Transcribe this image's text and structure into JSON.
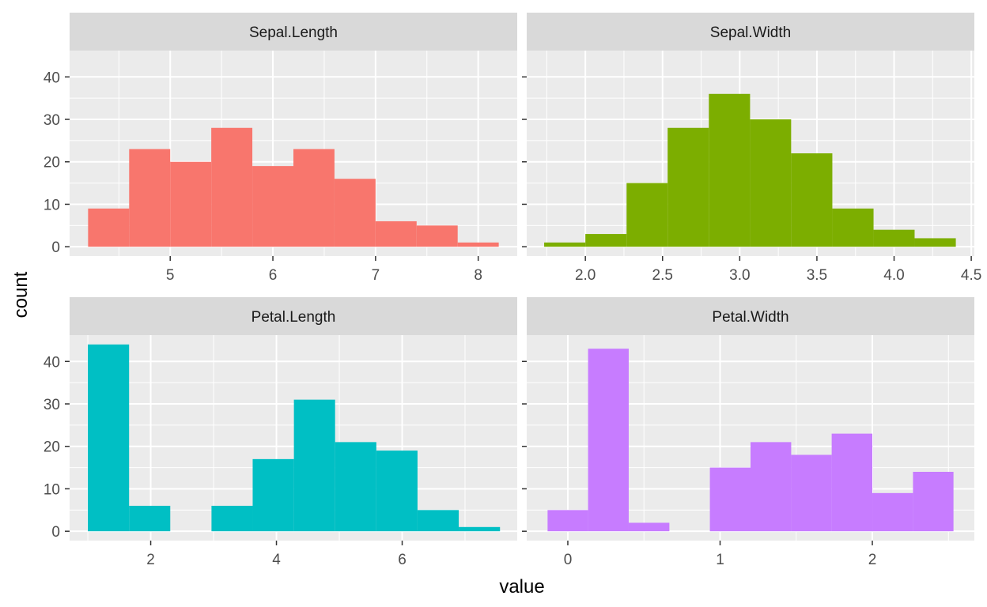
{
  "chart_data": {
    "type": "bar",
    "xlabel": "value",
    "ylabel": "count",
    "ylim": [
      -2.2,
      46.2
    ],
    "yticks": [
      0,
      10,
      20,
      30,
      40
    ],
    "grid": true,
    "legend": "none",
    "panels": [
      {
        "name": "Sepal.Length",
        "color": "#F8766D",
        "xlim": [
          4.02,
          8.38
        ],
        "xticks": [
          "5",
          "6",
          "7",
          "8"
        ],
        "xtick_values": [
          5,
          6,
          7,
          8
        ],
        "bins": [
          {
            "x0": 4.2,
            "x1": 4.6,
            "count": 9
          },
          {
            "x0": 4.6,
            "x1": 5.0,
            "count": 23
          },
          {
            "x0": 5.0,
            "x1": 5.4,
            "count": 20
          },
          {
            "x0": 5.4,
            "x1": 5.8,
            "count": 28
          },
          {
            "x0": 5.8,
            "x1": 6.2,
            "count": 19
          },
          {
            "x0": 6.2,
            "x1": 6.6,
            "count": 23
          },
          {
            "x0": 6.6,
            "x1": 7.0,
            "count": 16
          },
          {
            "x0": 7.0,
            "x1": 7.4,
            "count": 6
          },
          {
            "x0": 7.4,
            "x1": 7.8,
            "count": 5
          },
          {
            "x0": 7.8,
            "x1": 8.2,
            "count": 1
          }
        ]
      },
      {
        "name": "Sepal.Width",
        "color": "#7CAE00",
        "xlim": [
          1.62,
          4.52
        ],
        "xticks": [
          "2.0",
          "2.5",
          "3.0",
          "3.5",
          "4.0",
          "4.5"
        ],
        "xtick_values": [
          2.0,
          2.5,
          3.0,
          3.5,
          4.0,
          4.5
        ],
        "bins": [
          {
            "x0": 1.733,
            "x1": 2.0,
            "count": 1
          },
          {
            "x0": 2.0,
            "x1": 2.267,
            "count": 3
          },
          {
            "x0": 2.267,
            "x1": 2.533,
            "count": 15
          },
          {
            "x0": 2.533,
            "x1": 2.8,
            "count": 28
          },
          {
            "x0": 2.8,
            "x1": 3.067,
            "count": 36
          },
          {
            "x0": 3.067,
            "x1": 3.333,
            "count": 30
          },
          {
            "x0": 3.333,
            "x1": 3.6,
            "count": 22
          },
          {
            "x0": 3.6,
            "x1": 3.867,
            "count": 9
          },
          {
            "x0": 3.867,
            "x1": 4.133,
            "count": 4
          },
          {
            "x0": 4.133,
            "x1": 4.4,
            "count": 2
          }
        ]
      },
      {
        "name": "Petal.Length",
        "color": "#00BFC4",
        "xlim": [
          0.71,
          7.83
        ],
        "xticks": [
          "2",
          "4",
          "6"
        ],
        "xtick_values": [
          2,
          4,
          6
        ],
        "bins": [
          {
            "x0": 1.0,
            "x1": 1.656,
            "count": 44
          },
          {
            "x0": 1.656,
            "x1": 2.311,
            "count": 6
          },
          {
            "x0": 2.311,
            "x1": 2.967,
            "count": 0
          },
          {
            "x0": 2.967,
            "x1": 3.622,
            "count": 6
          },
          {
            "x0": 3.622,
            "x1": 4.278,
            "count": 17
          },
          {
            "x0": 4.278,
            "x1": 4.933,
            "count": 31
          },
          {
            "x0": 4.933,
            "x1": 5.589,
            "count": 21
          },
          {
            "x0": 5.589,
            "x1": 6.244,
            "count": 19
          },
          {
            "x0": 6.244,
            "x1": 6.9,
            "count": 5
          },
          {
            "x0": 6.9,
            "x1": 7.556,
            "count": 1
          }
        ]
      },
      {
        "name": "Petal.Width",
        "color": "#C77CFF",
        "xlim": [
          -0.27,
          2.67
        ],
        "xticks": [
          "0",
          "1",
          "2"
        ],
        "xtick_values": [
          0,
          1,
          2
        ],
        "bins": [
          {
            "x0": -0.133,
            "x1": 0.133,
            "count": 5
          },
          {
            "x0": 0.133,
            "x1": 0.4,
            "count": 43
          },
          {
            "x0": 0.4,
            "x1": 0.667,
            "count": 2
          },
          {
            "x0": 0.667,
            "x1": 0.933,
            "count": 0
          },
          {
            "x0": 0.933,
            "x1": 1.2,
            "count": 15
          },
          {
            "x0": 1.2,
            "x1": 1.467,
            "count": 21
          },
          {
            "x0": 1.467,
            "x1": 1.733,
            "count": 18
          },
          {
            "x0": 1.733,
            "x1": 2.0,
            "count": 23
          },
          {
            "x0": 2.0,
            "x1": 2.267,
            "count": 9
          },
          {
            "x0": 2.267,
            "x1": 2.533,
            "count": 14
          }
        ]
      }
    ]
  }
}
